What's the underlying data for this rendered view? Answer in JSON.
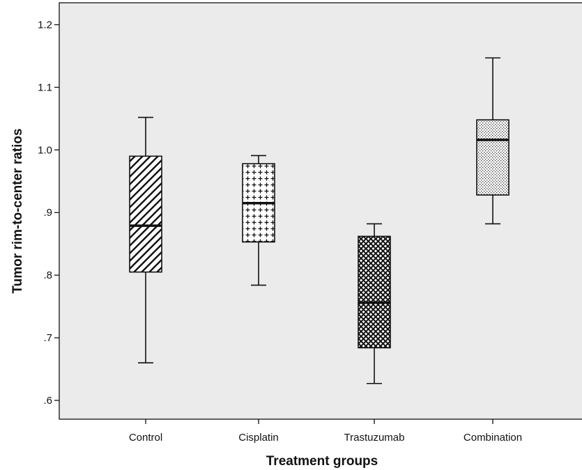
{
  "chart_data": {
    "type": "box",
    "title": "",
    "xlabel": "Treatment groups",
    "ylabel": "Tumor rim-to-center ratios",
    "ylim": [
      0.57,
      1.235
    ],
    "yticks": [
      {
        "value": 0.6,
        "label": ".6"
      },
      {
        "value": 0.7,
        "label": ".7"
      },
      {
        "value": 0.8,
        "label": ".8"
      },
      {
        "value": 0.9,
        "label": ".9"
      },
      {
        "value": 1.0,
        "label": "1.0"
      },
      {
        "value": 1.1,
        "label": "1.1"
      },
      {
        "value": 1.2,
        "label": "1.2"
      }
    ],
    "grid": false,
    "background_color": "#ebebeb",
    "categories": [
      "Control",
      "Cisplatin",
      "Trastuzumab",
      "Combination"
    ],
    "boxes": [
      {
        "category": "Control",
        "min": 0.66,
        "q1": 0.805,
        "median": 0.879,
        "q3": 0.99,
        "max": 1.052,
        "pattern": "diagonal-hatch"
      },
      {
        "category": "Cisplatin",
        "min": 0.784,
        "q1": 0.853,
        "median": 0.915,
        "q3": 0.978,
        "max": 0.991,
        "pattern": "plus-grid"
      },
      {
        "category": "Trastuzumab",
        "min": 0.627,
        "q1": 0.684,
        "median": 0.756,
        "q3": 0.862,
        "max": 0.882,
        "pattern": "cross-hatch"
      },
      {
        "category": "Combination",
        "min": 0.882,
        "q1": 0.928,
        "median": 1.016,
        "q3": 1.048,
        "max": 1.147,
        "pattern": "dots"
      }
    ]
  }
}
